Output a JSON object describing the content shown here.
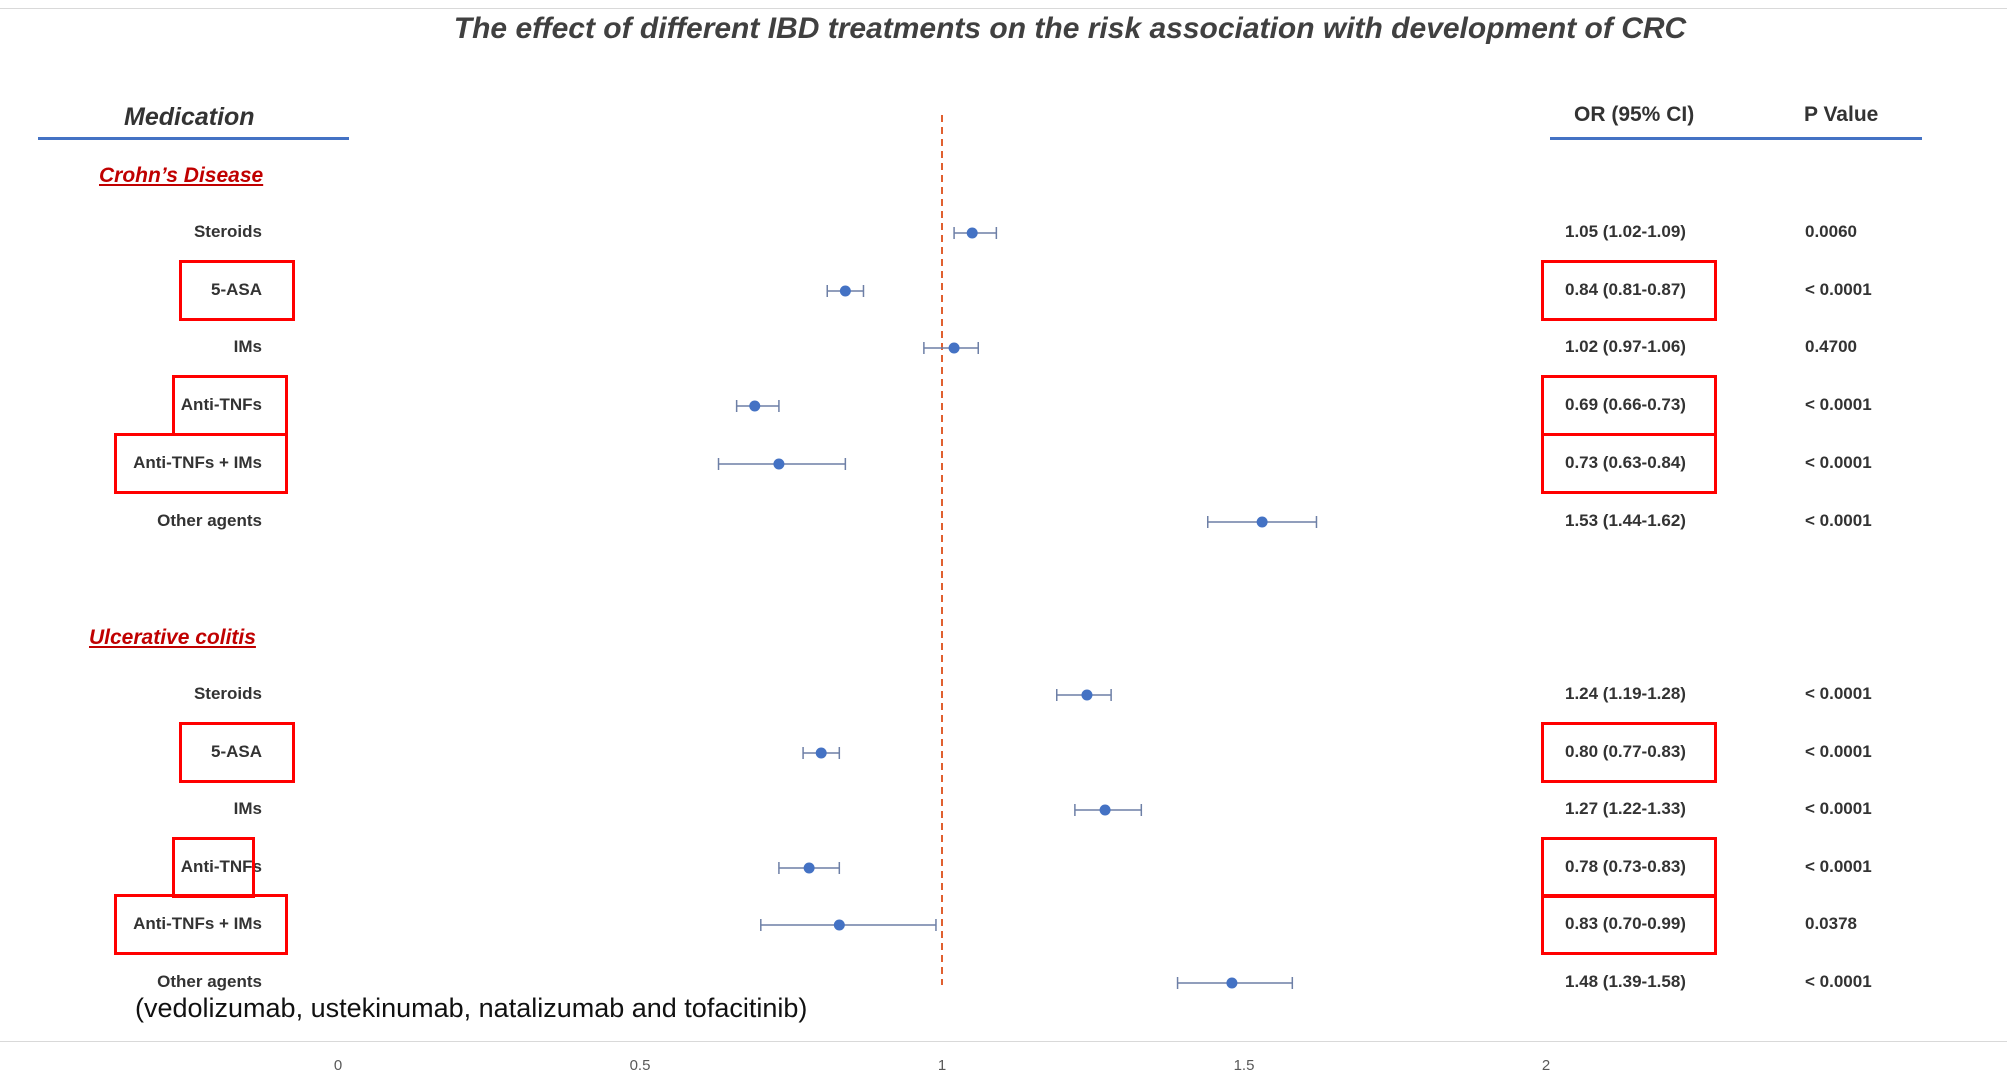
{
  "title": "The effect of different IBD treatments on the risk association with development of CRC",
  "headers": {
    "medication": "Medication",
    "or_ci": "OR (95% CI)",
    "p_value": "P Value"
  },
  "sections": [
    {
      "name": "Crohn’s Disease"
    },
    {
      "name": "Ulcerative colitis"
    }
  ],
  "footnote": "(vedolizumab, ustekinumab, natalizumab and tofacitinib)",
  "highlight_color": "#ff0000",
  "marker_color": "#4472c4",
  "reference_line_color": "#e06030",
  "chart_data": {
    "type": "forest",
    "xlim": [
      0,
      2.2
    ],
    "xticks": [
      "0",
      "0.5",
      "1",
      "1.5",
      "2"
    ],
    "reference_line": 1,
    "rows": [
      {
        "section": "Crohn’s Disease",
        "label": "Steroids",
        "or": 1.05,
        "lo": 1.02,
        "hi": 1.09,
        "or_text": "1.05 (1.02-1.09)",
        "p": "0.0060",
        "highlighted": false
      },
      {
        "section": "Crohn’s Disease",
        "label": "5-ASA",
        "or": 0.84,
        "lo": 0.81,
        "hi": 0.87,
        "or_text": "0.84 (0.81-0.87)",
        "p": "< 0.0001",
        "highlighted": true
      },
      {
        "section": "Crohn’s Disease",
        "label": "IMs",
        "or": 1.02,
        "lo": 0.97,
        "hi": 1.06,
        "or_text": "1.02 (0.97-1.06)",
        "p": "0.4700",
        "highlighted": false
      },
      {
        "section": "Crohn’s Disease",
        "label": "Anti-TNFs",
        "or": 0.69,
        "lo": 0.66,
        "hi": 0.73,
        "or_text": "0.69 (0.66-0.73)",
        "p": "< 0.0001",
        "highlighted": true
      },
      {
        "section": "Crohn’s Disease",
        "label": "Anti-TNFs + IMs",
        "or": 0.73,
        "lo": 0.63,
        "hi": 0.84,
        "or_text": "0.73 (0.63-0.84)",
        "p": "< 0.0001",
        "highlighted": true
      },
      {
        "section": "Crohn’s Disease",
        "label": "Other agents",
        "or": 1.53,
        "lo": 1.44,
        "hi": 1.62,
        "or_text": "1.53 (1.44-1.62)",
        "p": "< 0.0001",
        "highlighted": false
      },
      {
        "section": "Ulcerative colitis",
        "label": "Steroids",
        "or": 1.24,
        "lo": 1.19,
        "hi": 1.28,
        "or_text": "1.24 (1.19-1.28)",
        "p": "< 0.0001",
        "highlighted": false
      },
      {
        "section": "Ulcerative colitis",
        "label": "5-ASA",
        "or": 0.8,
        "lo": 0.77,
        "hi": 0.83,
        "or_text": "0.80 (0.77-0.83)",
        "p": "< 0.0001",
        "highlighted": true
      },
      {
        "section": "Ulcerative colitis",
        "label": "IMs",
        "or": 1.27,
        "lo": 1.22,
        "hi": 1.33,
        "or_text": "1.27 (1.22-1.33)",
        "p": "< 0.0001",
        "highlighted": false
      },
      {
        "section": "Ulcerative colitis",
        "label": "Anti-TNFs",
        "or": 0.78,
        "lo": 0.73,
        "hi": 0.83,
        "or_text": "0.78 (0.73-0.83)",
        "p": "< 0.0001",
        "highlighted": true
      },
      {
        "section": "Ulcerative colitis",
        "label": "Anti-TNFs + IMs",
        "or": 0.83,
        "lo": 0.7,
        "hi": 0.99,
        "or_text": "0.83 (0.70-0.99)",
        "p": "0.0378",
        "highlighted": true
      },
      {
        "section": "Ulcerative colitis",
        "label": "Other agents",
        "or": 1.48,
        "lo": 1.39,
        "hi": 1.58,
        "or_text": "1.48 (1.39-1.58)",
        "p": "< 0.0001",
        "highlighted": false
      }
    ]
  }
}
